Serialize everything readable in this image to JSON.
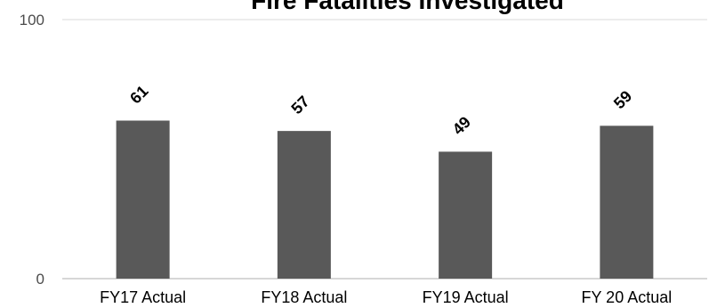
{
  "chart_data": {
    "type": "bar",
    "title": "Fire Fatalities Investigated",
    "categories": [
      "FY17 Actual",
      "FY18 Actual",
      "FY19 Actual",
      "FY 20 Actual"
    ],
    "values": [
      61,
      57,
      49,
      59
    ],
    "ylim": [
      0,
      100
    ],
    "yticks": [
      0,
      100
    ],
    "grid": true,
    "bar_color": "#595959",
    "data_labels": [
      "61",
      "57",
      "49",
      "59"
    ]
  }
}
